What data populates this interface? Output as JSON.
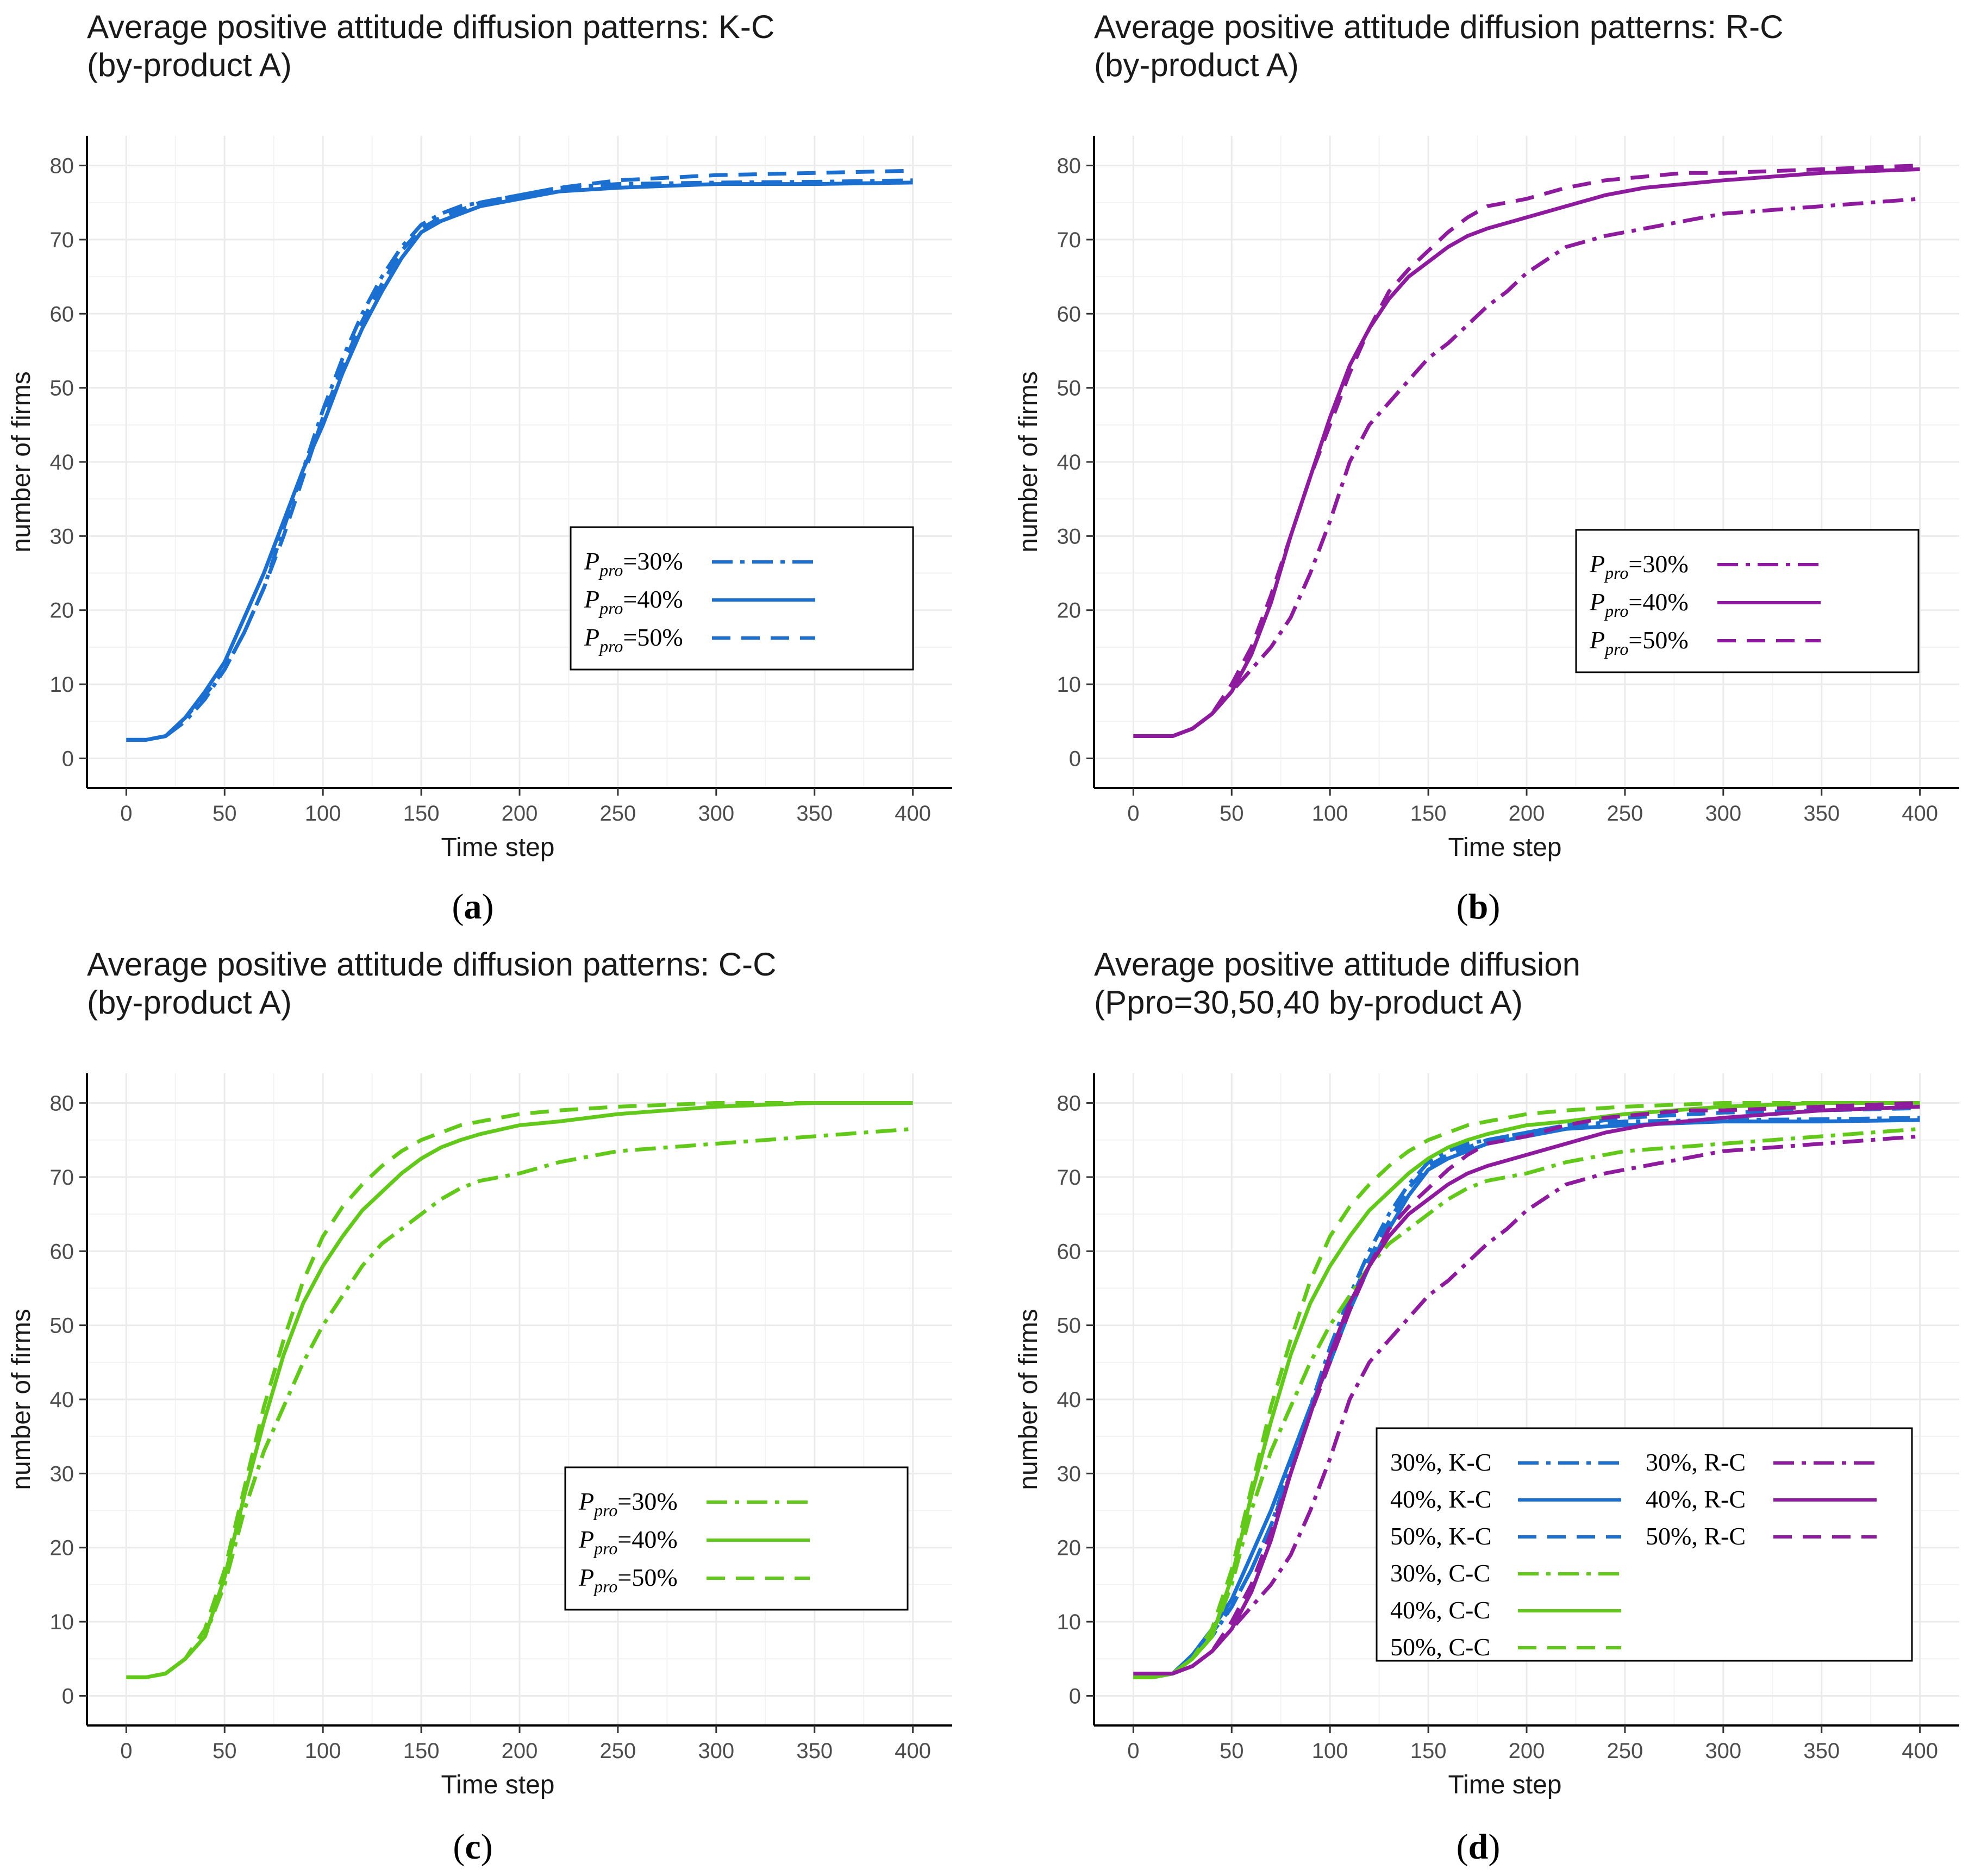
{
  "colors": {
    "KC": "#1a6fd0",
    "RC": "#8e1a9e",
    "CC": "#62c91a"
  },
  "axis": {
    "xlabel": "Time step",
    "ylabel": "number of firms",
    "xticks": [
      0,
      50,
      100,
      150,
      200,
      250,
      300,
      350,
      400
    ],
    "yticks": [
      0,
      10,
      20,
      30,
      40,
      50,
      60,
      70,
      80
    ],
    "xlim": [
      -20,
      420
    ],
    "ylim": [
      -4,
      84
    ]
  },
  "chart_data": [
    {
      "type": "line",
      "id": "a",
      "title": [
        "Average positive attitude diffusion patterns: K-C",
        "(by-product A)"
      ],
      "caption": "a",
      "legend": {
        "prefix": "P",
        "sub": "pro",
        "entries": [
          {
            "label": "=30%",
            "series": "KC30"
          },
          {
            "label": "=40%",
            "series": "KC40"
          },
          {
            "label": "=50%",
            "series": "KC50"
          }
        ]
      },
      "series": [
        "KC30",
        "KC40",
        "KC50"
      ]
    },
    {
      "type": "line",
      "id": "b",
      "title": [
        "Average positive attitude diffusion patterns: R-C",
        "(by-product A)"
      ],
      "caption": "b",
      "legend": {
        "prefix": "P",
        "sub": "pro",
        "entries": [
          {
            "label": "=30%",
            "series": "RC30"
          },
          {
            "label": "=40%",
            "series": "RC40"
          },
          {
            "label": "=50%",
            "series": "RC50"
          }
        ]
      },
      "series": [
        "RC30",
        "RC40",
        "RC50"
      ]
    },
    {
      "type": "line",
      "id": "c",
      "title": [
        "Average positive attitude diffusion patterns: C-C",
        "(by-product A)"
      ],
      "caption": "c",
      "legend": {
        "prefix": "P",
        "sub": "pro",
        "entries": [
          {
            "label": "=30%",
            "series": "CC30"
          },
          {
            "label": "=40%",
            "series": "CC40"
          },
          {
            "label": "=50%",
            "series": "CC50"
          }
        ]
      },
      "series": [
        "CC30",
        "CC40",
        "CC50"
      ]
    },
    {
      "type": "line",
      "id": "d",
      "title": [
        "Average positive attitude diffusion",
        "(Ppro=30,50,40  by-product A)"
      ],
      "caption": "d",
      "legend": {
        "entries": [
          {
            "label": "30%, K-C",
            "series": "KC30"
          },
          {
            "label": "40%, K-C",
            "series": "KC40"
          },
          {
            "label": "50%, K-C",
            "series": "KC50"
          },
          {
            "label": "30%, C-C",
            "series": "CC30"
          },
          {
            "label": "40%, C-C",
            "series": "CC40"
          },
          {
            "label": "50%, C-C",
            "series": "CC50"
          },
          {
            "label": "30%, R-C",
            "series": "RC30"
          },
          {
            "label": "40%, R-C",
            "series": "RC40"
          },
          {
            "label": "50%, R-C",
            "series": "RC50"
          }
        ]
      },
      "series": [
        "KC30",
        "KC40",
        "KC50",
        "CC30",
        "CC40",
        "CC50",
        "RC30",
        "RC40",
        "RC50"
      ]
    }
  ],
  "series_data": {
    "KC30": {
      "name": "30%, K-C",
      "color": "KC",
      "dash": "dotdash",
      "x": [
        0,
        10,
        20,
        30,
        40,
        50,
        60,
        70,
        80,
        90,
        100,
        110,
        120,
        130,
        140,
        150,
        160,
        170,
        180,
        200,
        220,
        250,
        300,
        350,
        400
      ],
      "y": [
        2.5,
        2.5,
        3,
        5,
        8,
        12,
        17,
        23,
        31,
        39,
        47,
        54,
        60,
        65,
        69,
        72,
        73.5,
        74.5,
        75,
        76,
        77,
        77.5,
        77.7,
        77.8,
        78
      ]
    },
    "KC40": {
      "name": "40%, K-C",
      "color": "KC",
      "dash": "solid",
      "x": [
        0,
        10,
        20,
        30,
        40,
        50,
        60,
        70,
        80,
        90,
        100,
        110,
        120,
        130,
        140,
        150,
        160,
        170,
        180,
        200,
        220,
        250,
        300,
        350,
        400
      ],
      "y": [
        2.5,
        2.5,
        3,
        5.5,
        9,
        13,
        19,
        25,
        32,
        39,
        45,
        52,
        58,
        63,
        67.5,
        71,
        72.5,
        73.5,
        74.5,
        75.5,
        76.5,
        77,
        77.5,
        77.5,
        77.7
      ]
    },
    "KC50": {
      "name": "50%, K-C",
      "color": "KC",
      "dash": "dashed",
      "x": [
        0,
        10,
        20,
        30,
        40,
        50,
        60,
        70,
        80,
        90,
        100,
        110,
        120,
        130,
        140,
        150,
        160,
        170,
        180,
        200,
        220,
        250,
        300,
        350,
        400
      ],
      "y": [
        2.5,
        2.5,
        3,
        5.5,
        8.5,
        12,
        17,
        23,
        30,
        38,
        46,
        53,
        59,
        64,
        68.5,
        71.5,
        73,
        74,
        75,
        76,
        77,
        78,
        78.7,
        79,
        79.3
      ]
    },
    "RC30": {
      "name": "30%, R-C",
      "color": "RC",
      "dash": "dotdash",
      "x": [
        0,
        10,
        20,
        30,
        40,
        50,
        60,
        70,
        80,
        90,
        100,
        110,
        120,
        130,
        140,
        150,
        160,
        170,
        180,
        190,
        200,
        220,
        240,
        260,
        280,
        300,
        350,
        400
      ],
      "y": [
        3,
        3,
        3,
        4,
        6,
        9,
        12,
        15,
        19,
        25,
        32,
        40,
        45,
        48,
        51,
        54,
        56,
        58.5,
        61,
        63,
        65.5,
        69,
        70.5,
        71.5,
        72.5,
        73.5,
        74.5,
        75.5
      ]
    },
    "RC40": {
      "name": "40%, R-C",
      "color": "RC",
      "dash": "solid",
      "x": [
        0,
        10,
        20,
        30,
        40,
        50,
        60,
        70,
        80,
        90,
        100,
        110,
        120,
        130,
        140,
        150,
        160,
        170,
        180,
        200,
        220,
        240,
        260,
        280,
        300,
        350,
        400
      ],
      "y": [
        3,
        3,
        3,
        4,
        6,
        9,
        14,
        21,
        30,
        38,
        46,
        53,
        58,
        62,
        65,
        67,
        69,
        70.5,
        71.5,
        73,
        74.5,
        76,
        77,
        77.5,
        78,
        79,
        79.5
      ]
    },
    "RC50": {
      "name": "50%, R-C",
      "color": "RC",
      "dash": "dashed",
      "x": [
        0,
        10,
        20,
        30,
        40,
        50,
        60,
        70,
        80,
        90,
        100,
        110,
        120,
        130,
        140,
        150,
        160,
        170,
        180,
        200,
        220,
        240,
        260,
        280,
        300,
        350,
        400
      ],
      "y": [
        3,
        3,
        3,
        4,
        6,
        10,
        15,
        22,
        30,
        38,
        45,
        52,
        58,
        63,
        66,
        68.5,
        71,
        73,
        74.5,
        75.5,
        77,
        78,
        78.5,
        79,
        79,
        79.5,
        80
      ]
    },
    "CC30": {
      "name": "30%, C-C",
      "color": "CC",
      "dash": "dotdash",
      "x": [
        0,
        10,
        20,
        30,
        40,
        50,
        60,
        70,
        80,
        90,
        100,
        110,
        120,
        130,
        140,
        150,
        160,
        170,
        180,
        200,
        220,
        250,
        300,
        350,
        400
      ],
      "y": [
        2.5,
        2.5,
        3,
        5,
        8,
        15,
        25,
        33,
        39,
        45,
        50,
        54,
        58,
        61,
        63,
        65,
        67,
        68.5,
        69.5,
        70.5,
        72,
        73.5,
        74.5,
        75.5,
        76.5
      ]
    },
    "CC40": {
      "name": "40%, C-C",
      "color": "CC",
      "dash": "solid",
      "x": [
        0,
        10,
        20,
        30,
        40,
        50,
        60,
        70,
        80,
        90,
        100,
        110,
        120,
        130,
        140,
        150,
        160,
        170,
        180,
        200,
        220,
        250,
        300,
        350,
        400
      ],
      "y": [
        2.5,
        2.5,
        3,
        5,
        8,
        16,
        27,
        37,
        46,
        53,
        58,
        62,
        65.5,
        68,
        70.5,
        72.5,
        74,
        75,
        75.8,
        77,
        77.5,
        78.5,
        79.5,
        80,
        80
      ]
    },
    "CC50": {
      "name": "50%, C-C",
      "color": "CC",
      "dash": "dashed",
      "x": [
        0,
        10,
        20,
        30,
        40,
        50,
        60,
        70,
        80,
        90,
        100,
        110,
        120,
        130,
        140,
        150,
        160,
        170,
        180,
        200,
        220,
        250,
        300,
        350,
        400
      ],
      "y": [
        2.5,
        2.5,
        3,
        5,
        9,
        17,
        28,
        39,
        48,
        56,
        62,
        66,
        69,
        71.5,
        73.5,
        75,
        76,
        77,
        77.5,
        78.5,
        79,
        79.5,
        80,
        80,
        80
      ]
    }
  }
}
